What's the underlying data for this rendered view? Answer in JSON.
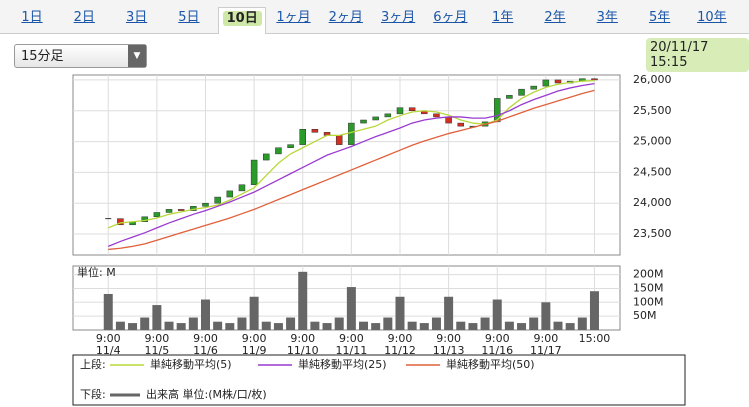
{
  "tabs": [
    "1日",
    "2日",
    "3日",
    "5日",
    "10日",
    "1ヶ月",
    "2ヶ月",
    "3ヶ月",
    "6ヶ月",
    "1年",
    "2年",
    "3年",
    "5年",
    "10年"
  ],
  "selected_tab": 4,
  "interval": "15分足",
  "timestamp": "20/11/17 15:15",
  "chart_data": {
    "type": "stock",
    "x": [
      0,
      1,
      2,
      3,
      4,
      5,
      6,
      7,
      8,
      9,
      10,
      11,
      12,
      13,
      14,
      15,
      16,
      17,
      18,
      19,
      20,
      21,
      22,
      23,
      24,
      25,
      26,
      27,
      28,
      29,
      30,
      31,
      32,
      33,
      34,
      35,
      36,
      37,
      38,
      39,
      40
    ],
    "xlim": [
      -2.9,
      42.1
    ],
    "xticks": [
      {
        "value": 0,
        "label": "9:00",
        "date": "11/4"
      },
      {
        "value": 4,
        "label": "9:00",
        "date": "11/5"
      },
      {
        "value": 8,
        "label": "9:00",
        "date": "11/6"
      },
      {
        "value": 12,
        "label": "9:00",
        "date": "11/9"
      },
      {
        "value": 16,
        "label": "9:00",
        "date": "11/10"
      },
      {
        "value": 20,
        "label": "9:00",
        "date": "11/11"
      },
      {
        "value": 24,
        "label": "9:00",
        "date": "11/12"
      },
      {
        "value": 28,
        "label": "9:00",
        "date": "11/13"
      },
      {
        "value": 32,
        "label": "9:00",
        "date": "11/16"
      },
      {
        "value": 36,
        "label": "9:00",
        "date": "11/17"
      },
      {
        "value": 40,
        "label": "15:00"
      }
    ],
    "price": [
      23750,
      23650,
      23700,
      23780,
      23850,
      23900,
      23880,
      23950,
      24000,
      24100,
      24200,
      24300,
      24700,
      24800,
      24900,
      24950,
      25200,
      25150,
      25100,
      24950,
      25300,
      25350,
      25400,
      25450,
      25550,
      25500,
      25450,
      25400,
      25300,
      25250,
      25250,
      25320,
      25700,
      25750,
      25850,
      25900,
      26000,
      25950,
      25980,
      26020,
      26000
    ],
    "up_color": "#2a9a2a",
    "down_color": "#d03020",
    "series": [
      {
        "name": "単純移動平均(5)",
        "color": "#b8d83a",
        "values": [
          23600,
          23680,
          23700,
          23720,
          23760,
          23820,
          23860,
          23900,
          23930,
          23970,
          24050,
          24150,
          24250,
          24450,
          24650,
          24800,
          24900,
          25000,
          25100,
          25100,
          25150,
          25200,
          25250,
          25350,
          25420,
          25480,
          25500,
          25480,
          25430,
          25350,
          25300,
          25280,
          25350,
          25550,
          25700,
          25800,
          25880,
          25930,
          25960,
          25980,
          25990
        ]
      },
      {
        "name": "単純移動平均(25)",
        "color": "#9a3ad0",
        "values": [
          23300,
          23380,
          23450,
          23520,
          23600,
          23680,
          23750,
          23820,
          23880,
          23950,
          24020,
          24100,
          24180,
          24280,
          24380,
          24480,
          24580,
          24680,
          24780,
          24850,
          24920,
          25000,
          25080,
          25150,
          25220,
          25300,
          25350,
          25380,
          25400,
          25400,
          25380,
          25380,
          25420,
          25500,
          25600,
          25680,
          25750,
          25820,
          25870,
          25910,
          25940
        ]
      },
      {
        "name": "単純移動平均(50)",
        "color": "#e0603a",
        "values": [
          23250,
          23270,
          23300,
          23340,
          23400,
          23460,
          23520,
          23580,
          23640,
          23700,
          23760,
          23830,
          23900,
          23980,
          24060,
          24140,
          24220,
          24300,
          24380,
          24460,
          24540,
          24620,
          24700,
          24780,
          24860,
          24940,
          25010,
          25070,
          25130,
          25180,
          25230,
          25280,
          25330,
          25400,
          25470,
          25540,
          25600,
          25660,
          25720,
          25780,
          25830
        ]
      }
    ],
    "ylim": [
      23160,
      26080
    ],
    "yticks": [
      {
        "value": 23500,
        "label": "23,500"
      },
      {
        "value": 24000,
        "label": "24,000"
      },
      {
        "value": 24500,
        "label": "24,500"
      },
      {
        "value": 25000,
        "label": "25,000"
      },
      {
        "value": 25500,
        "label": "25,500"
      },
      {
        "value": 26000,
        "label": "26,000"
      }
    ],
    "grid": true,
    "volume": {
      "label": "単位: M",
      "name": "出来高 単位:(M株/口/枚)",
      "color": "#666666",
      "values": [
        130,
        30,
        25,
        45,
        90,
        30,
        25,
        45,
        110,
        30,
        25,
        45,
        120,
        30,
        25,
        45,
        210,
        30,
        25,
        45,
        155,
        30,
        25,
        45,
        120,
        30,
        25,
        45,
        120,
        30,
        25,
        45,
        110,
        30,
        25,
        45,
        100,
        30,
        25,
        45,
        140
      ],
      "ylim": [
        0,
        231
      ],
      "yticks": [
        {
          "value": 50,
          "label": "50M"
        },
        {
          "value": 100,
          "label": "100M"
        },
        {
          "value": 150,
          "label": "150M"
        },
        {
          "value": 200,
          "label": "200M"
        }
      ]
    },
    "legend": {
      "upper": "上段:",
      "lower": "下段:"
    }
  }
}
